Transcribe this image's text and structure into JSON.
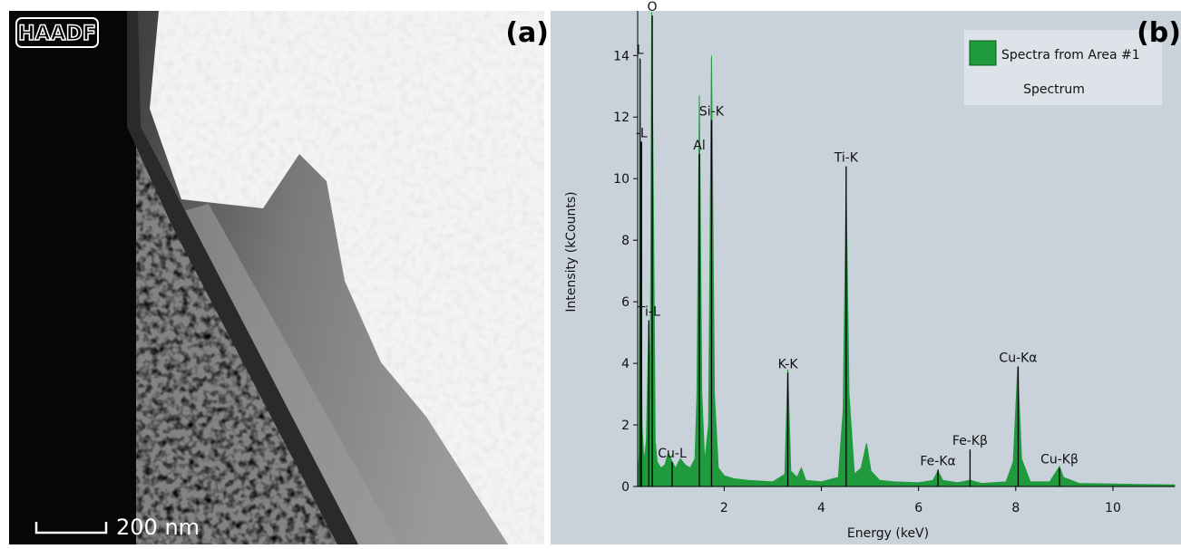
{
  "image": {
    "label": "HAADF",
    "scale_bar": "200 nm",
    "panel_label": "(a)"
  },
  "chart_data": {
    "type": "area",
    "panel_label": "(b)",
    "x_label": "Energy (keV)",
    "y_label": "Intensity (kCounts)",
    "xlim": [
      0.22,
      11.27
    ],
    "ylim": [
      0,
      15.45
    ],
    "xticks": [
      2,
      4,
      6,
      8,
      10
    ],
    "yticks": [
      0,
      2,
      4,
      6,
      8,
      10,
      12,
      14
    ],
    "legend": {
      "title": "Spectrum",
      "corner": "upper right"
    },
    "series": [
      {
        "name": "Spectra from Area #1",
        "color": "#1f9a3c",
        "x": [
          0.22,
          0.25,
          0.28,
          0.31,
          0.35,
          0.4,
          0.45,
          0.48,
          0.51,
          0.55,
          0.58,
          0.62,
          0.7,
          0.78,
          0.85,
          0.93,
          1.0,
          1.1,
          1.2,
          1.3,
          1.4,
          1.44,
          1.49,
          1.54,
          1.6,
          1.68,
          1.74,
          1.8,
          1.88,
          2.0,
          2.2,
          2.5,
          3.0,
          3.25,
          3.31,
          3.37,
          3.5,
          3.59,
          3.68,
          4.0,
          4.35,
          4.45,
          4.51,
          4.57,
          4.68,
          4.82,
          4.93,
          5.02,
          5.2,
          5.5,
          6.0,
          6.3,
          6.4,
          6.5,
          6.8,
          7.06,
          7.3,
          7.8,
          7.95,
          8.04,
          8.12,
          8.3,
          8.7,
          8.84,
          8.9,
          8.98,
          9.3,
          10,
          11.27
        ],
        "values": [
          0.2,
          1,
          11.2,
          2,
          0.8,
          1.5,
          5.3,
          3,
          15.4,
          8,
          1.5,
          0.8,
          0.6,
          0.7,
          1.1,
          0.8,
          0.6,
          0.9,
          0.7,
          0.6,
          0.9,
          3,
          12.7,
          3,
          0.8,
          2,
          14.0,
          3,
          0.6,
          0.35,
          0.25,
          0.2,
          0.15,
          0.4,
          3.8,
          0.5,
          0.3,
          0.6,
          0.2,
          0.15,
          0.3,
          2.5,
          9.8,
          3,
          0.4,
          0.6,
          1.4,
          0.5,
          0.2,
          0.15,
          0.12,
          0.2,
          0.5,
          0.2,
          0.12,
          0.2,
          0.1,
          0.15,
          0.8,
          3.9,
          0.9,
          0.15,
          0.15,
          0.5,
          0.65,
          0.3,
          0.1,
          0.08,
          0.05
        ]
      }
    ],
    "markers": [
      {
        "label": "L",
        "x": 0.27,
        "height": 13.9
      },
      {
        "label": "-L",
        "x": 0.3,
        "height": 11.2
      },
      {
        "label": "O",
        "x": 0.52,
        "height": 15.3
      },
      {
        "label": "Ti-L",
        "x": 0.45,
        "height": 5.4
      },
      {
        "label": "Cu-L",
        "x": 0.93,
        "height": 0.8
      },
      {
        "label": "Al",
        "x": 1.49,
        "height": 10.8
      },
      {
        "label": "Si-K",
        "x": 1.74,
        "height": 11.9
      },
      {
        "label": "K-K",
        "x": 3.31,
        "height": 3.7
      },
      {
        "label": "Ti-K",
        "x": 4.51,
        "height": 10.4
      },
      {
        "label": "Fe-Kα",
        "x": 6.4,
        "height": 0.55
      },
      {
        "label": "Fe-Kβ",
        "x": 7.06,
        "height": 1.2
      },
      {
        "label": "Cu-Kα",
        "x": 8.05,
        "height": 3.9
      },
      {
        "label": "Cu-Kβ",
        "x": 8.9,
        "height": 0.6
      }
    ]
  }
}
